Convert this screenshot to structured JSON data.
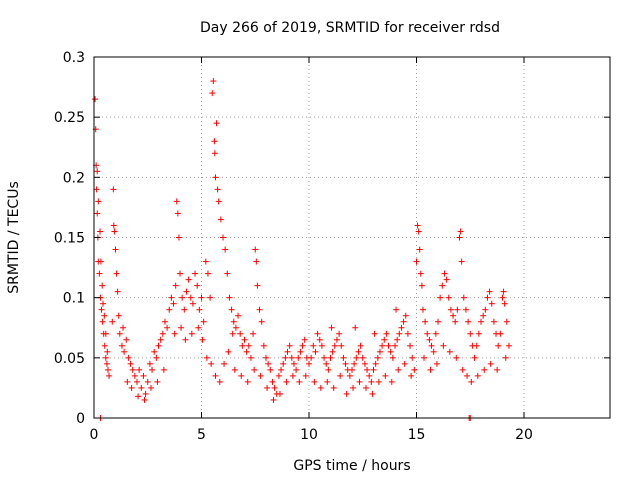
{
  "chart_data": {
    "type": "scatter",
    "title": "Day 266 of 2019, SRMTID for receiver rdsd",
    "xlabel": "GPS time / hours",
    "ylabel": "SRMTID / TECUs",
    "xlim": [
      0,
      24
    ],
    "ylim": [
      0,
      0.3
    ],
    "xticks": [
      0,
      5,
      10,
      15,
      20
    ],
    "xtick_labels": [
      "0",
      "5",
      "10",
      "15",
      "20"
    ],
    "yticks": [
      0,
      0.05,
      0.1,
      0.15,
      0.2,
      0.25,
      0.3
    ],
    "ytick_labels": [
      "0",
      "0.05",
      "0.1",
      "0.15",
      "0.2",
      "0.25",
      "0.3"
    ],
    "grid": true,
    "marker": "plus",
    "color": "#ff0000",
    "series": [
      {
        "name": "SRMTID",
        "points": [
          [
            0.05,
            0.265
          ],
          [
            0.08,
            0.24
          ],
          [
            0.1,
            0.21
          ],
          [
            0.12,
            0.19
          ],
          [
            0.15,
            0.17
          ],
          [
            0.18,
            0.15
          ],
          [
            0.2,
            0.13
          ],
          [
            0.25,
            0.12
          ],
          [
            0.3,
            0.1
          ],
          [
            0.35,
            0.09
          ],
          [
            0.4,
            0.08
          ],
          [
            0.45,
            0.07
          ],
          [
            0.5,
            0.06
          ],
          [
            0.55,
            0.05
          ],
          [
            0.6,
            0.045
          ],
          [
            0.65,
            0.04
          ],
          [
            0.7,
            0.035
          ],
          [
            0.15,
            0.205
          ],
          [
            0.2,
            0.18
          ],
          [
            0.28,
            0.155
          ],
          [
            0.32,
            0.13
          ],
          [
            0.38,
            0.11
          ],
          [
            0.42,
            0.095
          ],
          [
            0.48,
            0.085
          ],
          [
            0.55,
            0.07
          ],
          [
            0.62,
            0.055
          ],
          [
            0.3,
            0.0
          ],
          [
            0.9,
            0.19
          ],
          [
            0.92,
            0.16
          ],
          [
            0.95,
            0.155
          ],
          [
            1.0,
            0.14
          ],
          [
            1.05,
            0.12
          ],
          [
            1.1,
            0.105
          ],
          [
            0.85,
            0.08
          ],
          [
            1.2,
            0.07
          ],
          [
            1.3,
            0.06
          ],
          [
            1.4,
            0.055
          ],
          [
            1.5,
            0.065
          ],
          [
            1.6,
            0.05
          ],
          [
            1.7,
            0.045
          ],
          [
            1.8,
            0.04
          ],
          [
            1.9,
            0.035
          ],
          [
            2.0,
            0.03
          ],
          [
            2.1,
            0.04
          ],
          [
            2.2,
            0.025
          ],
          [
            2.3,
            0.035
          ],
          [
            2.4,
            0.02
          ],
          [
            2.5,
            0.03
          ],
          [
            2.6,
            0.045
          ],
          [
            2.7,
            0.04
          ],
          [
            2.8,
            0.055
          ],
          [
            2.9,
            0.05
          ],
          [
            3.0,
            0.06
          ],
          [
            3.1,
            0.065
          ],
          [
            3.2,
            0.07
          ],
          [
            3.3,
            0.08
          ],
          [
            3.4,
            0.075
          ],
          [
            3.5,
            0.09
          ],
          [
            1.15,
            0.085
          ],
          [
            1.35,
            0.075
          ],
          [
            1.55,
            0.03
          ],
          [
            1.75,
            0.025
          ],
          [
            2.05,
            0.018
          ],
          [
            2.35,
            0.015
          ],
          [
            2.65,
            0.025
          ],
          [
            2.95,
            0.03
          ],
          [
            3.25,
            0.04
          ],
          [
            3.6,
            0.1
          ],
          [
            3.7,
            0.095
          ],
          [
            3.8,
            0.11
          ],
          [
            3.85,
            0.18
          ],
          [
            3.9,
            0.17
          ],
          [
            3.95,
            0.15
          ],
          [
            4.0,
            0.12
          ],
          [
            4.1,
            0.1
          ],
          [
            4.2,
            0.09
          ],
          [
            4.3,
            0.105
          ],
          [
            4.4,
            0.115
          ],
          [
            4.5,
            0.1
          ],
          [
            4.6,
            0.095
          ],
          [
            4.7,
            0.12
          ],
          [
            4.8,
            0.11
          ],
          [
            4.9,
            0.09
          ],
          [
            5.0,
            0.1
          ],
          [
            5.1,
            0.08
          ],
          [
            5.2,
            0.13
          ],
          [
            5.3,
            0.12
          ],
          [
            5.4,
            0.1
          ],
          [
            5.5,
            0.27
          ],
          [
            5.55,
            0.28
          ],
          [
            5.6,
            0.23
          ],
          [
            5.62,
            0.22
          ],
          [
            5.65,
            0.2
          ],
          [
            5.7,
            0.245
          ],
          [
            5.75,
            0.19
          ],
          [
            5.8,
            0.18
          ],
          [
            5.9,
            0.165
          ],
          [
            6.0,
            0.15
          ],
          [
            6.1,
            0.14
          ],
          [
            6.2,
            0.12
          ],
          [
            6.3,
            0.1
          ],
          [
            6.4,
            0.09
          ],
          [
            3.75,
            0.07
          ],
          [
            4.05,
            0.075
          ],
          [
            4.25,
            0.065
          ],
          [
            4.55,
            0.07
          ],
          [
            4.85,
            0.075
          ],
          [
            5.05,
            0.065
          ],
          [
            5.25,
            0.05
          ],
          [
            5.45,
            0.045
          ],
          [
            5.65,
            0.035
          ],
          [
            5.85,
            0.03
          ],
          [
            6.05,
            0.045
          ],
          [
            6.25,
            0.055
          ],
          [
            6.45,
            0.07
          ],
          [
            6.5,
            0.08
          ],
          [
            6.6,
            0.075
          ],
          [
            6.7,
            0.085
          ],
          [
            6.8,
            0.07
          ],
          [
            6.9,
            0.06
          ],
          [
            7.0,
            0.065
          ],
          [
            7.1,
            0.055
          ],
          [
            7.2,
            0.06
          ],
          [
            7.3,
            0.05
          ],
          [
            7.4,
            0.07
          ],
          [
            7.5,
            0.14
          ],
          [
            7.55,
            0.13
          ],
          [
            7.6,
            0.11
          ],
          [
            7.7,
            0.09
          ],
          [
            7.8,
            0.08
          ],
          [
            7.9,
            0.06
          ],
          [
            8.0,
            0.05
          ],
          [
            8.1,
            0.045
          ],
          [
            8.2,
            0.04
          ],
          [
            8.3,
            0.03
          ],
          [
            8.4,
            0.025
          ],
          [
            8.5,
            0.02
          ],
          [
            8.6,
            0.035
          ],
          [
            8.7,
            0.04
          ],
          [
            8.8,
            0.045
          ],
          [
            8.9,
            0.05
          ],
          [
            9.0,
            0.055
          ],
          [
            9.1,
            0.06
          ],
          [
            9.2,
            0.05
          ],
          [
            9.3,
            0.045
          ],
          [
            9.4,
            0.04
          ],
          [
            9.5,
            0.05
          ],
          [
            9.6,
            0.055
          ],
          [
            9.7,
            0.06
          ],
          [
            9.8,
            0.065
          ],
          [
            9.9,
            0.05
          ],
          [
            6.55,
            0.04
          ],
          [
            6.85,
            0.035
          ],
          [
            7.15,
            0.03
          ],
          [
            7.45,
            0.04
          ],
          [
            7.75,
            0.035
          ],
          [
            8.05,
            0.025
          ],
          [
            8.35,
            0.015
          ],
          [
            8.65,
            0.02
          ],
          [
            8.95,
            0.03
          ],
          [
            9.25,
            0.035
          ],
          [
            9.55,
            0.03
          ],
          [
            9.85,
            0.035
          ],
          [
            10.0,
            0.045
          ],
          [
            10.1,
            0.05
          ],
          [
            10.2,
            0.06
          ],
          [
            10.3,
            0.055
          ],
          [
            10.4,
            0.07
          ],
          [
            10.5,
            0.065
          ],
          [
            10.6,
            0.06
          ],
          [
            10.7,
            0.05
          ],
          [
            10.8,
            0.045
          ],
          [
            10.9,
            0.04
          ],
          [
            11.0,
            0.05
          ],
          [
            11.1,
            0.055
          ],
          [
            11.2,
            0.06
          ],
          [
            11.3,
            0.065
          ],
          [
            11.4,
            0.07
          ],
          [
            11.5,
            0.06
          ],
          [
            11.6,
            0.05
          ],
          [
            11.7,
            0.045
          ],
          [
            11.8,
            0.04
          ],
          [
            11.9,
            0.035
          ],
          [
            12.0,
            0.04
          ],
          [
            12.1,
            0.045
          ],
          [
            12.2,
            0.05
          ],
          [
            12.3,
            0.055
          ],
          [
            12.4,
            0.06
          ],
          [
            12.5,
            0.05
          ],
          [
            12.6,
            0.045
          ],
          [
            12.7,
            0.04
          ],
          [
            12.8,
            0.035
          ],
          [
            12.9,
            0.03
          ],
          [
            13.0,
            0.04
          ],
          [
            13.1,
            0.045
          ],
          [
            13.2,
            0.05
          ],
          [
            13.3,
            0.055
          ],
          [
            13.4,
            0.06
          ],
          [
            13.5,
            0.065
          ],
          [
            13.6,
            0.07
          ],
          [
            13.7,
            0.06
          ],
          [
            13.8,
            0.055
          ],
          [
            13.9,
            0.05
          ],
          [
            14.0,
            0.06
          ],
          [
            14.1,
            0.065
          ],
          [
            14.2,
            0.07
          ],
          [
            14.3,
            0.075
          ],
          [
            14.4,
            0.08
          ],
          [
            14.5,
            0.085
          ],
          [
            14.6,
            0.07
          ],
          [
            14.7,
            0.06
          ],
          [
            14.8,
            0.05
          ],
          [
            14.9,
            0.04
          ],
          [
            10.25,
            0.03
          ],
          [
            10.55,
            0.025
          ],
          [
            10.85,
            0.03
          ],
          [
            11.15,
            0.025
          ],
          [
            11.45,
            0.035
          ],
          [
            11.75,
            0.02
          ],
          [
            12.05,
            0.025
          ],
          [
            12.35,
            0.03
          ],
          [
            12.65,
            0.025
          ],
          [
            12.95,
            0.02
          ],
          [
            13.25,
            0.03
          ],
          [
            13.55,
            0.035
          ],
          [
            13.85,
            0.03
          ],
          [
            14.15,
            0.04
          ],
          [
            14.45,
            0.045
          ],
          [
            14.75,
            0.035
          ],
          [
            11.05,
            0.075
          ],
          [
            12.15,
            0.075
          ],
          [
            13.05,
            0.07
          ],
          [
            14.05,
            0.09
          ],
          [
            15.0,
            0.13
          ],
          [
            15.05,
            0.16
          ],
          [
            15.1,
            0.155
          ],
          [
            15.15,
            0.14
          ],
          [
            15.2,
            0.12
          ],
          [
            15.25,
            0.11
          ],
          [
            15.3,
            0.09
          ],
          [
            15.4,
            0.08
          ],
          [
            15.5,
            0.07
          ],
          [
            15.6,
            0.065
          ],
          [
            15.7,
            0.06
          ],
          [
            15.8,
            0.055
          ],
          [
            15.9,
            0.07
          ],
          [
            16.0,
            0.08
          ],
          [
            16.1,
            0.1
          ],
          [
            16.2,
            0.11
          ],
          [
            16.3,
            0.12
          ],
          [
            16.4,
            0.115
          ],
          [
            16.5,
            0.1
          ],
          [
            16.6,
            0.09
          ],
          [
            16.7,
            0.085
          ],
          [
            16.8,
            0.08
          ],
          [
            16.9,
            0.09
          ],
          [
            17.0,
            0.15
          ],
          [
            17.05,
            0.155
          ],
          [
            17.1,
            0.13
          ],
          [
            17.2,
            0.1
          ],
          [
            17.3,
            0.09
          ],
          [
            17.4,
            0.08
          ],
          [
            17.5,
            0.07
          ],
          [
            17.6,
            0.06
          ],
          [
            17.7,
            0.05
          ],
          [
            17.8,
            0.06
          ],
          [
            17.9,
            0.07
          ],
          [
            18.0,
            0.08
          ],
          [
            18.1,
            0.085
          ],
          [
            18.2,
            0.09
          ],
          [
            18.3,
            0.1
          ],
          [
            18.4,
            0.105
          ],
          [
            18.5,
            0.095
          ],
          [
            18.6,
            0.08
          ],
          [
            18.7,
            0.07
          ],
          [
            18.8,
            0.06
          ],
          [
            18.9,
            0.07
          ],
          [
            19.0,
            0.1
          ],
          [
            19.05,
            0.105
          ],
          [
            19.1,
            0.095
          ],
          [
            19.2,
            0.08
          ],
          [
            19.3,
            0.06
          ],
          [
            15.35,
            0.05
          ],
          [
            15.65,
            0.04
          ],
          [
            15.95,
            0.045
          ],
          [
            16.25,
            0.06
          ],
          [
            16.55,
            0.055
          ],
          [
            16.85,
            0.05
          ],
          [
            17.15,
            0.04
          ],
          [
            17.35,
            0.035
          ],
          [
            17.55,
            0.03
          ],
          [
            17.85,
            0.035
          ],
          [
            18.15,
            0.04
          ],
          [
            18.45,
            0.045
          ],
          [
            18.75,
            0.04
          ],
          [
            19.15,
            0.05
          ],
          [
            17.45,
            0.0
          ],
          [
            17.5,
            0.0
          ]
        ]
      }
    ]
  }
}
